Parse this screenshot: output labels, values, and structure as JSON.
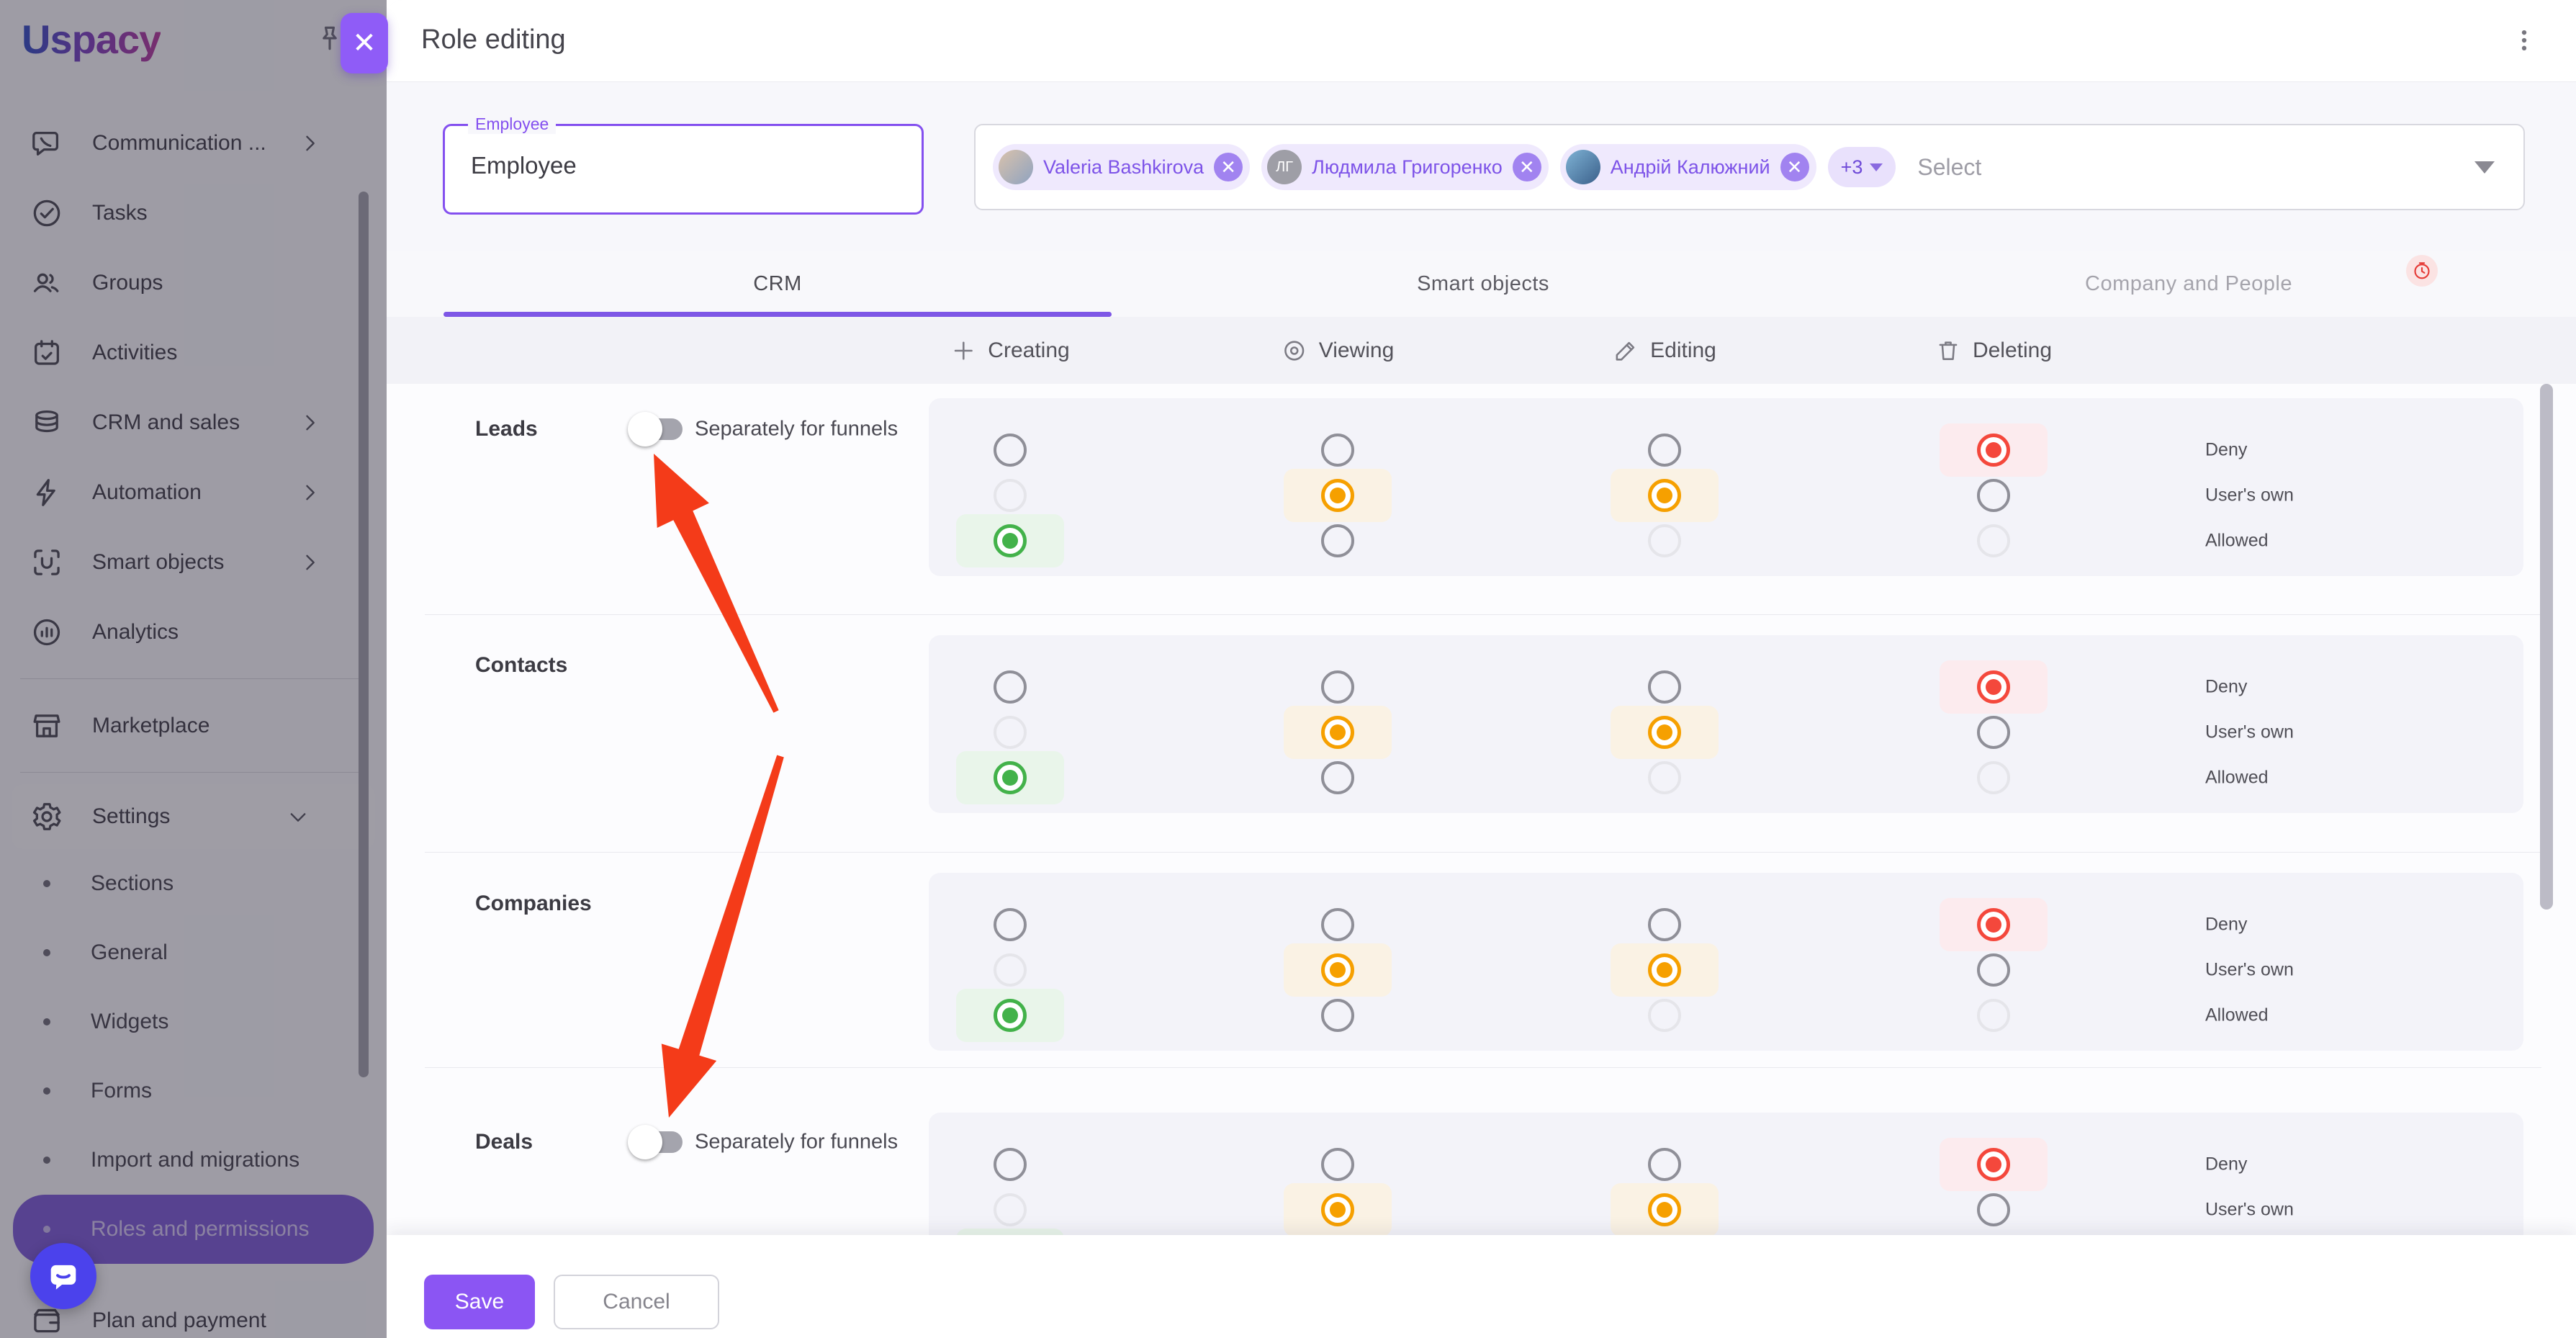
{
  "colors": {
    "accent": "#8b5cf6",
    "tab_underline": "#7e57e6",
    "green": "#43b24a",
    "green_pill": "#e9f5ea",
    "amber": "#f6a000",
    "amber_pill": "#faf2e4",
    "red": "#f4483c",
    "red_pill": "#fcebee",
    "arrow": "#f43b19"
  },
  "sidebar": {
    "logo_text": "Uspacy",
    "items": [
      {
        "label": "Communication ...",
        "icon": "chat-icon",
        "chevron": true
      },
      {
        "label": "Tasks",
        "icon": "check-circle-icon",
        "chevron": false
      },
      {
        "label": "Groups",
        "icon": "people-icon",
        "chevron": false
      },
      {
        "label": "Activities",
        "icon": "calendar-icon",
        "chevron": false
      },
      {
        "label": "CRM and sales",
        "icon": "coins-icon",
        "chevron": true
      },
      {
        "label": "Automation",
        "icon": "lightning-icon",
        "chevron": true
      },
      {
        "label": "Smart objects",
        "icon": "scan-icon",
        "chevron": true
      },
      {
        "label": "Analytics",
        "icon": "analytics-icon",
        "chevron": false
      }
    ],
    "marketplace": {
      "label": "Marketplace",
      "icon": "store-icon"
    },
    "settings": {
      "label": "Settings",
      "icon": "gear-icon",
      "expanded": true
    },
    "settings_subitems": [
      {
        "label": "Sections",
        "active": false
      },
      {
        "label": "General",
        "active": false
      },
      {
        "label": "Widgets",
        "active": false
      },
      {
        "label": "Forms",
        "active": false
      },
      {
        "label": "Import and migrations",
        "active": false
      },
      {
        "label": "Roles and permissions",
        "active": true
      }
    ],
    "plan_item": {
      "label": "Plan and payment",
      "icon": "wallet-icon"
    }
  },
  "header": {
    "title": "Role editing"
  },
  "employee_field": {
    "label": "Employee",
    "value": "Employee"
  },
  "member_select": {
    "chips": [
      {
        "name": "Valeria Bashkirova",
        "avatar_type": "photo",
        "initials": ""
      },
      {
        "name": "Людмила Григоренко",
        "avatar_type": "initials",
        "initials": "ЛГ"
      },
      {
        "name": "Андрій Калюжний",
        "avatar_type": "photo",
        "initials": ""
      }
    ],
    "more_chip": "+3",
    "placeholder": "Select"
  },
  "tabs": [
    {
      "label": "CRM",
      "state": "active"
    },
    {
      "label": "Smart objects",
      "state": "default"
    },
    {
      "label": "Company and People",
      "state": "disabled",
      "badge": "clock"
    }
  ],
  "matrix": {
    "columns": [
      {
        "label": "Creating",
        "icon": "plus-icon"
      },
      {
        "label": "Viewing",
        "icon": "eye-icon"
      },
      {
        "label": "Editing",
        "icon": "pencil-icon"
      },
      {
        "label": "Deleting",
        "icon": "trash-icon"
      }
    ],
    "option_labels": [
      "Deny",
      "User's own",
      "Allowed"
    ],
    "rows": [
      {
        "label": "Leads",
        "has_toggle": true,
        "toggle_label": "Separately for funnels",
        "toggle_state": "off",
        "cells": [
          {
            "column": "creating",
            "selected": 2,
            "color": "green",
            "faint": [
              1
            ]
          },
          {
            "column": "viewing",
            "selected": 1,
            "color": "amber",
            "faint": []
          },
          {
            "column": "editing",
            "selected": 1,
            "color": "amber",
            "faint": [
              2
            ]
          },
          {
            "column": "deleting",
            "selected": 0,
            "color": "red",
            "faint": [
              2
            ]
          }
        ]
      },
      {
        "label": "Contacts",
        "has_toggle": false,
        "toggle_label": "",
        "toggle_state": "",
        "cells": [
          {
            "column": "creating",
            "selected": 2,
            "color": "green",
            "faint": [
              1
            ]
          },
          {
            "column": "viewing",
            "selected": 1,
            "color": "amber",
            "faint": []
          },
          {
            "column": "editing",
            "selected": 1,
            "color": "amber",
            "faint": [
              2
            ]
          },
          {
            "column": "deleting",
            "selected": 0,
            "color": "red",
            "faint": [
              2
            ]
          }
        ]
      },
      {
        "label": "Companies",
        "has_toggle": false,
        "toggle_label": "",
        "toggle_state": "",
        "cells": [
          {
            "column": "creating",
            "selected": 2,
            "color": "green",
            "faint": [
              1
            ]
          },
          {
            "column": "viewing",
            "selected": 1,
            "color": "amber",
            "faint": []
          },
          {
            "column": "editing",
            "selected": 1,
            "color": "amber",
            "faint": [
              2
            ]
          },
          {
            "column": "deleting",
            "selected": 0,
            "color": "red",
            "faint": [
              2
            ]
          }
        ]
      },
      {
        "label": "Deals",
        "has_toggle": true,
        "toggle_label": "Separately for funnels",
        "toggle_state": "off",
        "cells": [
          {
            "column": "creating",
            "selected": 2,
            "color": "green",
            "faint": [
              1
            ]
          },
          {
            "column": "viewing",
            "selected": 1,
            "color": "amber",
            "faint": []
          },
          {
            "column": "editing",
            "selected": 1,
            "color": "amber",
            "faint": [
              2
            ]
          },
          {
            "column": "deleting",
            "selected": 0,
            "color": "red",
            "faint": [
              2
            ]
          }
        ]
      }
    ]
  },
  "footer": {
    "save_label": "Save",
    "cancel_label": "Cancel"
  }
}
